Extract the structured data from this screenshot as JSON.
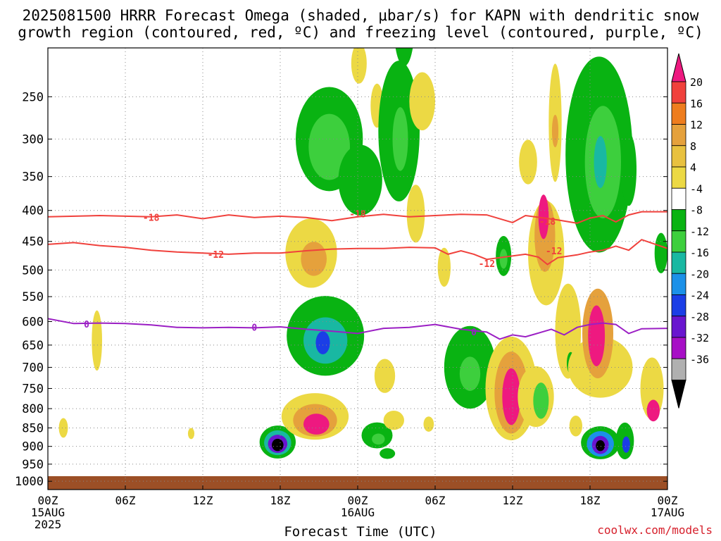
{
  "title": {
    "line1": "2025081500 HRRR Forecast Omega (shaded, μbar/s) for KAPN with dendritic snow",
    "line2": "growth region (contoured, red, ºC) and freezing level (contoured, purple, ºC)"
  },
  "credit": "coolwx.com/models",
  "colors": {
    "grid": "#888888",
    "ground": "#9c4f26",
    "dgz_contour": "#f0413c",
    "freezing_contour": "#9b1fc4"
  },
  "chart_data": {
    "type": "heatmap",
    "xlabel": "Forecast Time (UTC)",
    "ylabel": "",
    "x_ticks": [
      {
        "hour": 0,
        "label": "00Z",
        "sub1": "15AUG",
        "sub2": "2025"
      },
      {
        "hour": 6,
        "label": "06Z"
      },
      {
        "hour": 12,
        "label": "12Z"
      },
      {
        "hour": 18,
        "label": "18Z"
      },
      {
        "hour": 24,
        "label": "00Z",
        "sub1": "16AUG"
      },
      {
        "hour": 30,
        "label": "06Z"
      },
      {
        "hour": 36,
        "label": "12Z"
      },
      {
        "hour": 42,
        "label": "18Z"
      },
      {
        "hour": 48,
        "label": "00Z",
        "sub1": "17AUG"
      }
    ],
    "xlim": [
      0,
      48
    ],
    "y_ticks": [
      250,
      300,
      350,
      400,
      450,
      500,
      550,
      600,
      650,
      700,
      750,
      800,
      850,
      900,
      950,
      1000
    ],
    "ylim_mb": [
      1025,
      200
    ],
    "ground_top_mb": 985,
    "colorbar": {
      "labels": [
        "20",
        "16",
        "12",
        "8",
        "4",
        "-4",
        "-8",
        "-12",
        "-16",
        "-20",
        "-24",
        "-28",
        "-32",
        "-36"
      ],
      "colors": [
        "#f0413c",
        "#ee7d1e",
        "#e5a13c",
        "#e8c13f",
        "#ecd944",
        "#ffffff",
        "#09b312",
        "#3dcf3d",
        "#19b8a2",
        "#1c91e8",
        "#1b3ee6",
        "#6915cf",
        "#a70fc6",
        "#b0b0b0"
      ],
      "top_arrow": "#ee1980",
      "bottom_arrow": "#000000"
    },
    "contours": [
      {
        "name": "dgz_minus18",
        "label": "-18",
        "color": "#f0413c",
        "label_positions": [
          [
            8,
            411
          ],
          [
            24,
            405
          ],
          [
            38.7,
            417
          ]
        ],
        "points": [
          [
            0,
            410
          ],
          [
            4,
            408
          ],
          [
            8,
            410
          ],
          [
            10,
            407
          ],
          [
            12,
            413
          ],
          [
            14,
            407
          ],
          [
            16,
            411
          ],
          [
            18,
            409
          ],
          [
            20,
            411
          ],
          [
            22,
            416
          ],
          [
            24,
            410
          ],
          [
            26,
            406
          ],
          [
            28,
            410
          ],
          [
            30,
            408
          ],
          [
            32,
            406
          ],
          [
            34,
            407
          ],
          [
            36,
            419
          ],
          [
            37,
            408
          ],
          [
            38.5,
            412
          ],
          [
            39.5,
            415
          ],
          [
            41,
            420
          ],
          [
            42,
            412
          ],
          [
            43,
            408
          ],
          [
            44,
            418
          ],
          [
            45,
            407
          ],
          [
            46,
            402
          ],
          [
            48,
            402
          ]
        ]
      },
      {
        "name": "dgz_minus12",
        "label": "-12",
        "color": "#f0413c",
        "label_positions": [
          [
            13,
            472
          ],
          [
            34,
            488
          ],
          [
            39.2,
            466
          ]
        ],
        "points": [
          [
            0,
            455
          ],
          [
            2,
            452
          ],
          [
            4,
            457
          ],
          [
            6,
            460
          ],
          [
            8,
            465
          ],
          [
            10,
            468
          ],
          [
            12,
            470
          ],
          [
            14,
            472
          ],
          [
            16,
            470
          ],
          [
            18,
            470
          ],
          [
            20,
            466
          ],
          [
            22,
            463
          ],
          [
            24,
            462
          ],
          [
            26,
            462
          ],
          [
            28,
            460
          ],
          [
            30,
            461
          ],
          [
            31,
            472
          ],
          [
            32,
            466
          ],
          [
            33,
            472
          ],
          [
            34,
            481
          ],
          [
            35,
            478
          ],
          [
            37,
            472
          ],
          [
            38,
            477
          ],
          [
            38.7,
            490
          ],
          [
            39.5,
            478
          ],
          [
            41,
            473
          ],
          [
            42,
            468
          ],
          [
            43,
            465
          ],
          [
            44,
            458
          ],
          [
            45,
            465
          ],
          [
            46,
            447
          ],
          [
            48,
            462
          ]
        ]
      },
      {
        "name": "freezing_0",
        "label": "0",
        "color": "#9b1fc4",
        "label_positions": [
          [
            3,
            605
          ],
          [
            16,
            612
          ],
          [
            33,
            621
          ]
        ],
        "points": [
          [
            0,
            594
          ],
          [
            2,
            604
          ],
          [
            4,
            603
          ],
          [
            6,
            604
          ],
          [
            8,
            607
          ],
          [
            10,
            612
          ],
          [
            12,
            613
          ],
          [
            14,
            612
          ],
          [
            16,
            613
          ],
          [
            18,
            611
          ],
          [
            20,
            616
          ],
          [
            22,
            620
          ],
          [
            24,
            625
          ],
          [
            26,
            614
          ],
          [
            28,
            612
          ],
          [
            30,
            606
          ],
          [
            32,
            616
          ],
          [
            34,
            622
          ],
          [
            35,
            637
          ],
          [
            36,
            628
          ],
          [
            37,
            632
          ],
          [
            38,
            624
          ],
          [
            39,
            616
          ],
          [
            40,
            628
          ],
          [
            41,
            612
          ],
          [
            42,
            606
          ],
          [
            43,
            603
          ],
          [
            44,
            606
          ],
          [
            45,
            625
          ],
          [
            46,
            615
          ],
          [
            48,
            614
          ]
        ]
      }
    ],
    "omega_cells": [
      {
        "t": 1.2,
        "p": 850,
        "dt": 0.35,
        "dp": 52,
        "v": 4
      },
      {
        "t": 3.8,
        "p": 640,
        "dt": 0.4,
        "dp": 130,
        "v": 4
      },
      {
        "t": 11.1,
        "p": 865,
        "dt": 0.25,
        "dp": 30,
        "v": 4
      },
      {
        "t": 17.8,
        "p": 888,
        "dt": 1.4,
        "dp": 90,
        "v": -8
      },
      {
        "t": 17.8,
        "p": 890,
        "dt": 1.05,
        "dp": 68,
        "v": -16
      },
      {
        "t": 17.8,
        "p": 893,
        "dt": 0.75,
        "dp": 50,
        "v": -28
      },
      {
        "t": 17.8,
        "p": 896,
        "dt": 0.45,
        "dp": 34,
        "v": -36
      },
      {
        "t": 21.5,
        "p": 630,
        "dt": 3.0,
        "dp": 170,
        "v": -8
      },
      {
        "t": 21.5,
        "p": 640,
        "dt": 1.7,
        "dp": 100,
        "v": -16
      },
      {
        "t": 21.3,
        "p": 645,
        "dt": 0.55,
        "dp": 50,
        "v": -24
      },
      {
        "t": 20.7,
        "p": 820,
        "dt": 2.6,
        "dp": 120,
        "v": 4
      },
      {
        "t": 20.7,
        "p": 830,
        "dt": 1.7,
        "dp": 85,
        "v": 12
      },
      {
        "t": 20.8,
        "p": 840,
        "dt": 1.0,
        "dp": 55,
        "v": 20
      },
      {
        "t": 20.4,
        "p": 470,
        "dt": 2.0,
        "dp": 120,
        "v": 4
      },
      {
        "t": 20.6,
        "p": 480,
        "dt": 1.0,
        "dp": 60,
        "v": 12
      },
      {
        "t": 21.8,
        "p": 300,
        "dt": 2.6,
        "dp": 130,
        "v": -8
      },
      {
        "t": 21.8,
        "p": 310,
        "dt": 1.6,
        "dp": 85,
        "v": -12
      },
      {
        "t": 24.2,
        "p": 355,
        "dt": 1.7,
        "dp": 100,
        "v": -8
      },
      {
        "t": 24.1,
        "p": 215,
        "dt": 0.6,
        "dp": 40,
        "v": 4
      },
      {
        "t": 25.5,
        "p": 870,
        "dt": 1.2,
        "dp": 70,
        "v": -8
      },
      {
        "t": 25.6,
        "p": 880,
        "dt": 0.5,
        "dp": 30,
        "v": -12
      },
      {
        "t": 26.3,
        "p": 920,
        "dt": 0.6,
        "dp": 30,
        "v": -8
      },
      {
        "t": 25.5,
        "p": 260,
        "dt": 0.5,
        "dp": 50,
        "v": 4
      },
      {
        "t": 26.1,
        "p": 720,
        "dt": 0.8,
        "dp": 80,
        "v": 4
      },
      {
        "t": 26.8,
        "p": 830,
        "dt": 0.8,
        "dp": 50,
        "v": 4
      },
      {
        "t": 27.6,
        "p": 180,
        "dt": 0.8,
        "dp": 70,
        "v": -8
      },
      {
        "t": 27.2,
        "p": 290,
        "dt": 1.6,
        "dp": 170,
        "v": -8
      },
      {
        "t": 27.3,
        "p": 300,
        "dt": 0.6,
        "dp": 80,
        "v": -12
      },
      {
        "t": 29.0,
        "p": 255,
        "dt": 1.0,
        "dp": 65,
        "v": 4
      },
      {
        "t": 28.5,
        "p": 405,
        "dt": 0.7,
        "dp": 90,
        "v": 4
      },
      {
        "t": 29.5,
        "p": 840,
        "dt": 0.4,
        "dp": 40,
        "v": 4
      },
      {
        "t": 30.7,
        "p": 495,
        "dt": 0.5,
        "dp": 70,
        "v": 4
      },
      {
        "t": 32.7,
        "p": 700,
        "dt": 2.0,
        "dp": 190,
        "v": -8
      },
      {
        "t": 32.7,
        "p": 715,
        "dt": 0.8,
        "dp": 80,
        "v": -12
      },
      {
        "t": 35.3,
        "p": 475,
        "dt": 0.6,
        "dp": 70,
        "v": -8
      },
      {
        "t": 35.3,
        "p": 480,
        "dt": 0.3,
        "dp": 35,
        "v": -12
      },
      {
        "t": 35.9,
        "p": 750,
        "dt": 2.0,
        "dp": 250,
        "v": 4
      },
      {
        "t": 35.9,
        "p": 760,
        "dt": 1.3,
        "dp": 200,
        "v": 12
      },
      {
        "t": 35.9,
        "p": 770,
        "dt": 0.7,
        "dp": 140,
        "v": 20
      },
      {
        "t": 37.2,
        "p": 330,
        "dt": 0.7,
        "dp": 60,
        "v": 4
      },
      {
        "t": 38.6,
        "p": 470,
        "dt": 1.4,
        "dp": 180,
        "v": 4
      },
      {
        "t": 38.5,
        "p": 440,
        "dt": 0.8,
        "dp": 120,
        "v": 12
      },
      {
        "t": 38.4,
        "p": 410,
        "dt": 0.4,
        "dp": 70,
        "v": 20
      },
      {
        "t": 37.8,
        "p": 770,
        "dt": 1.4,
        "dp": 150,
        "v": 4
      },
      {
        "t": 38.2,
        "p": 780,
        "dt": 0.6,
        "dp": 90,
        "v": -12
      },
      {
        "t": 39.3,
        "p": 280,
        "dt": 0.5,
        "dp": 140,
        "v": 4
      },
      {
        "t": 39.3,
        "p": 290,
        "dt": 0.25,
        "dp": 40,
        "v": 12
      },
      {
        "t": 40.3,
        "p": 620,
        "dt": 1.0,
        "dp": 200,
        "v": 4
      },
      {
        "t": 40.5,
        "p": 690,
        "dt": 0.3,
        "dp": 50,
        "v": -8
      },
      {
        "t": 40.9,
        "p": 845,
        "dt": 0.5,
        "dp": 55,
        "v": 4
      },
      {
        "t": 42.7,
        "p": 320,
        "dt": 2.6,
        "dp": 250,
        "v": -8
      },
      {
        "t": 43.0,
        "p": 330,
        "dt": 1.4,
        "dp": 150,
        "v": -12
      },
      {
        "t": 42.8,
        "p": 330,
        "dt": 0.5,
        "dp": 70,
        "v": -16
      },
      {
        "t": 42.8,
        "p": 700,
        "dt": 2.5,
        "dp": 140,
        "v": 4
      },
      {
        "t": 42.8,
        "p": 890,
        "dt": 1.5,
        "dp": 90,
        "v": -8
      },
      {
        "t": 42.8,
        "p": 893,
        "dt": 1.05,
        "dp": 70,
        "v": -20
      },
      {
        "t": 42.8,
        "p": 896,
        "dt": 0.65,
        "dp": 50,
        "v": -28
      },
      {
        "t": 42.8,
        "p": 898,
        "dt": 0.35,
        "dp": 30,
        "v": -36
      },
      {
        "t": 42.6,
        "p": 625,
        "dt": 1.2,
        "dp": 190,
        "v": 12
      },
      {
        "t": 42.5,
        "p": 630,
        "dt": 0.65,
        "dp": 130,
        "v": 20
      },
      {
        "t": 44.7,
        "p": 885,
        "dt": 0.7,
        "dp": 100,
        "v": -8
      },
      {
        "t": 44.8,
        "p": 895,
        "dt": 0.3,
        "dp": 45,
        "v": -24
      },
      {
        "t": 45.0,
        "p": 340,
        "dt": 0.6,
        "dp": 100,
        "v": -8
      },
      {
        "t": 46.8,
        "p": 750,
        "dt": 0.9,
        "dp": 150,
        "v": 4
      },
      {
        "t": 46.9,
        "p": 805,
        "dt": 0.5,
        "dp": 55,
        "v": 20
      },
      {
        "t": 47.5,
        "p": 470,
        "dt": 0.5,
        "dp": 70,
        "v": -8
      }
    ]
  }
}
